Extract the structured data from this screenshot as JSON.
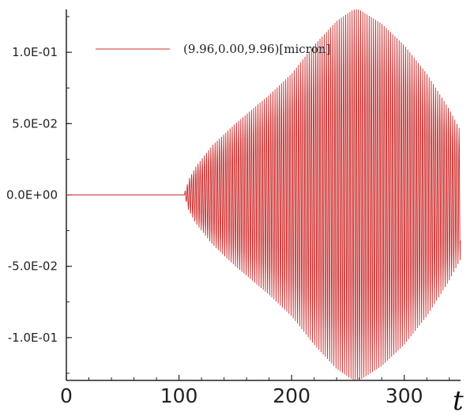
{
  "chart_data": {
    "type": "line",
    "title": "",
    "xlabel": "t",
    "ylabel": "",
    "xlim": [
      0,
      350
    ],
    "ylim": [
      -0.13,
      0.13
    ],
    "x_ticks": [
      0,
      100,
      200,
      300
    ],
    "x_tick_labels": [
      "0",
      "100",
      "200",
      "300"
    ],
    "y_ticks": [
      0.1,
      0.05,
      0.0,
      -0.05,
      -0.1
    ],
    "y_tick_labels": [
      "1.0E-01",
      "5.0E-02",
      "0.0E+00",
      "-5.0E-02",
      "-1.0E-01"
    ],
    "grid": false,
    "legend": {
      "placement": "top-left"
    },
    "series": [
      {
        "name": "(9.96,0.00,9.96)[micron]",
        "color": "#cc2b2b",
        "signal": "oscillation",
        "quiet_until_t": 105,
        "oscillation_period_t": 1.9,
        "envelope": {
          "t": [
            0,
            104,
            105,
            107,
            108,
            115,
            130,
            150,
            180,
            200,
            220,
            240,
            255,
            260,
            280,
            300,
            320,
            340,
            350
          ],
          "amplitude": [
            0.0,
            0.0,
            0.002,
            0.006,
            0.01,
            0.02,
            0.035,
            0.05,
            0.07,
            0.085,
            0.105,
            0.122,
            0.13,
            0.13,
            0.12,
            0.105,
            0.085,
            0.06,
            0.045
          ]
        }
      }
    ]
  }
}
